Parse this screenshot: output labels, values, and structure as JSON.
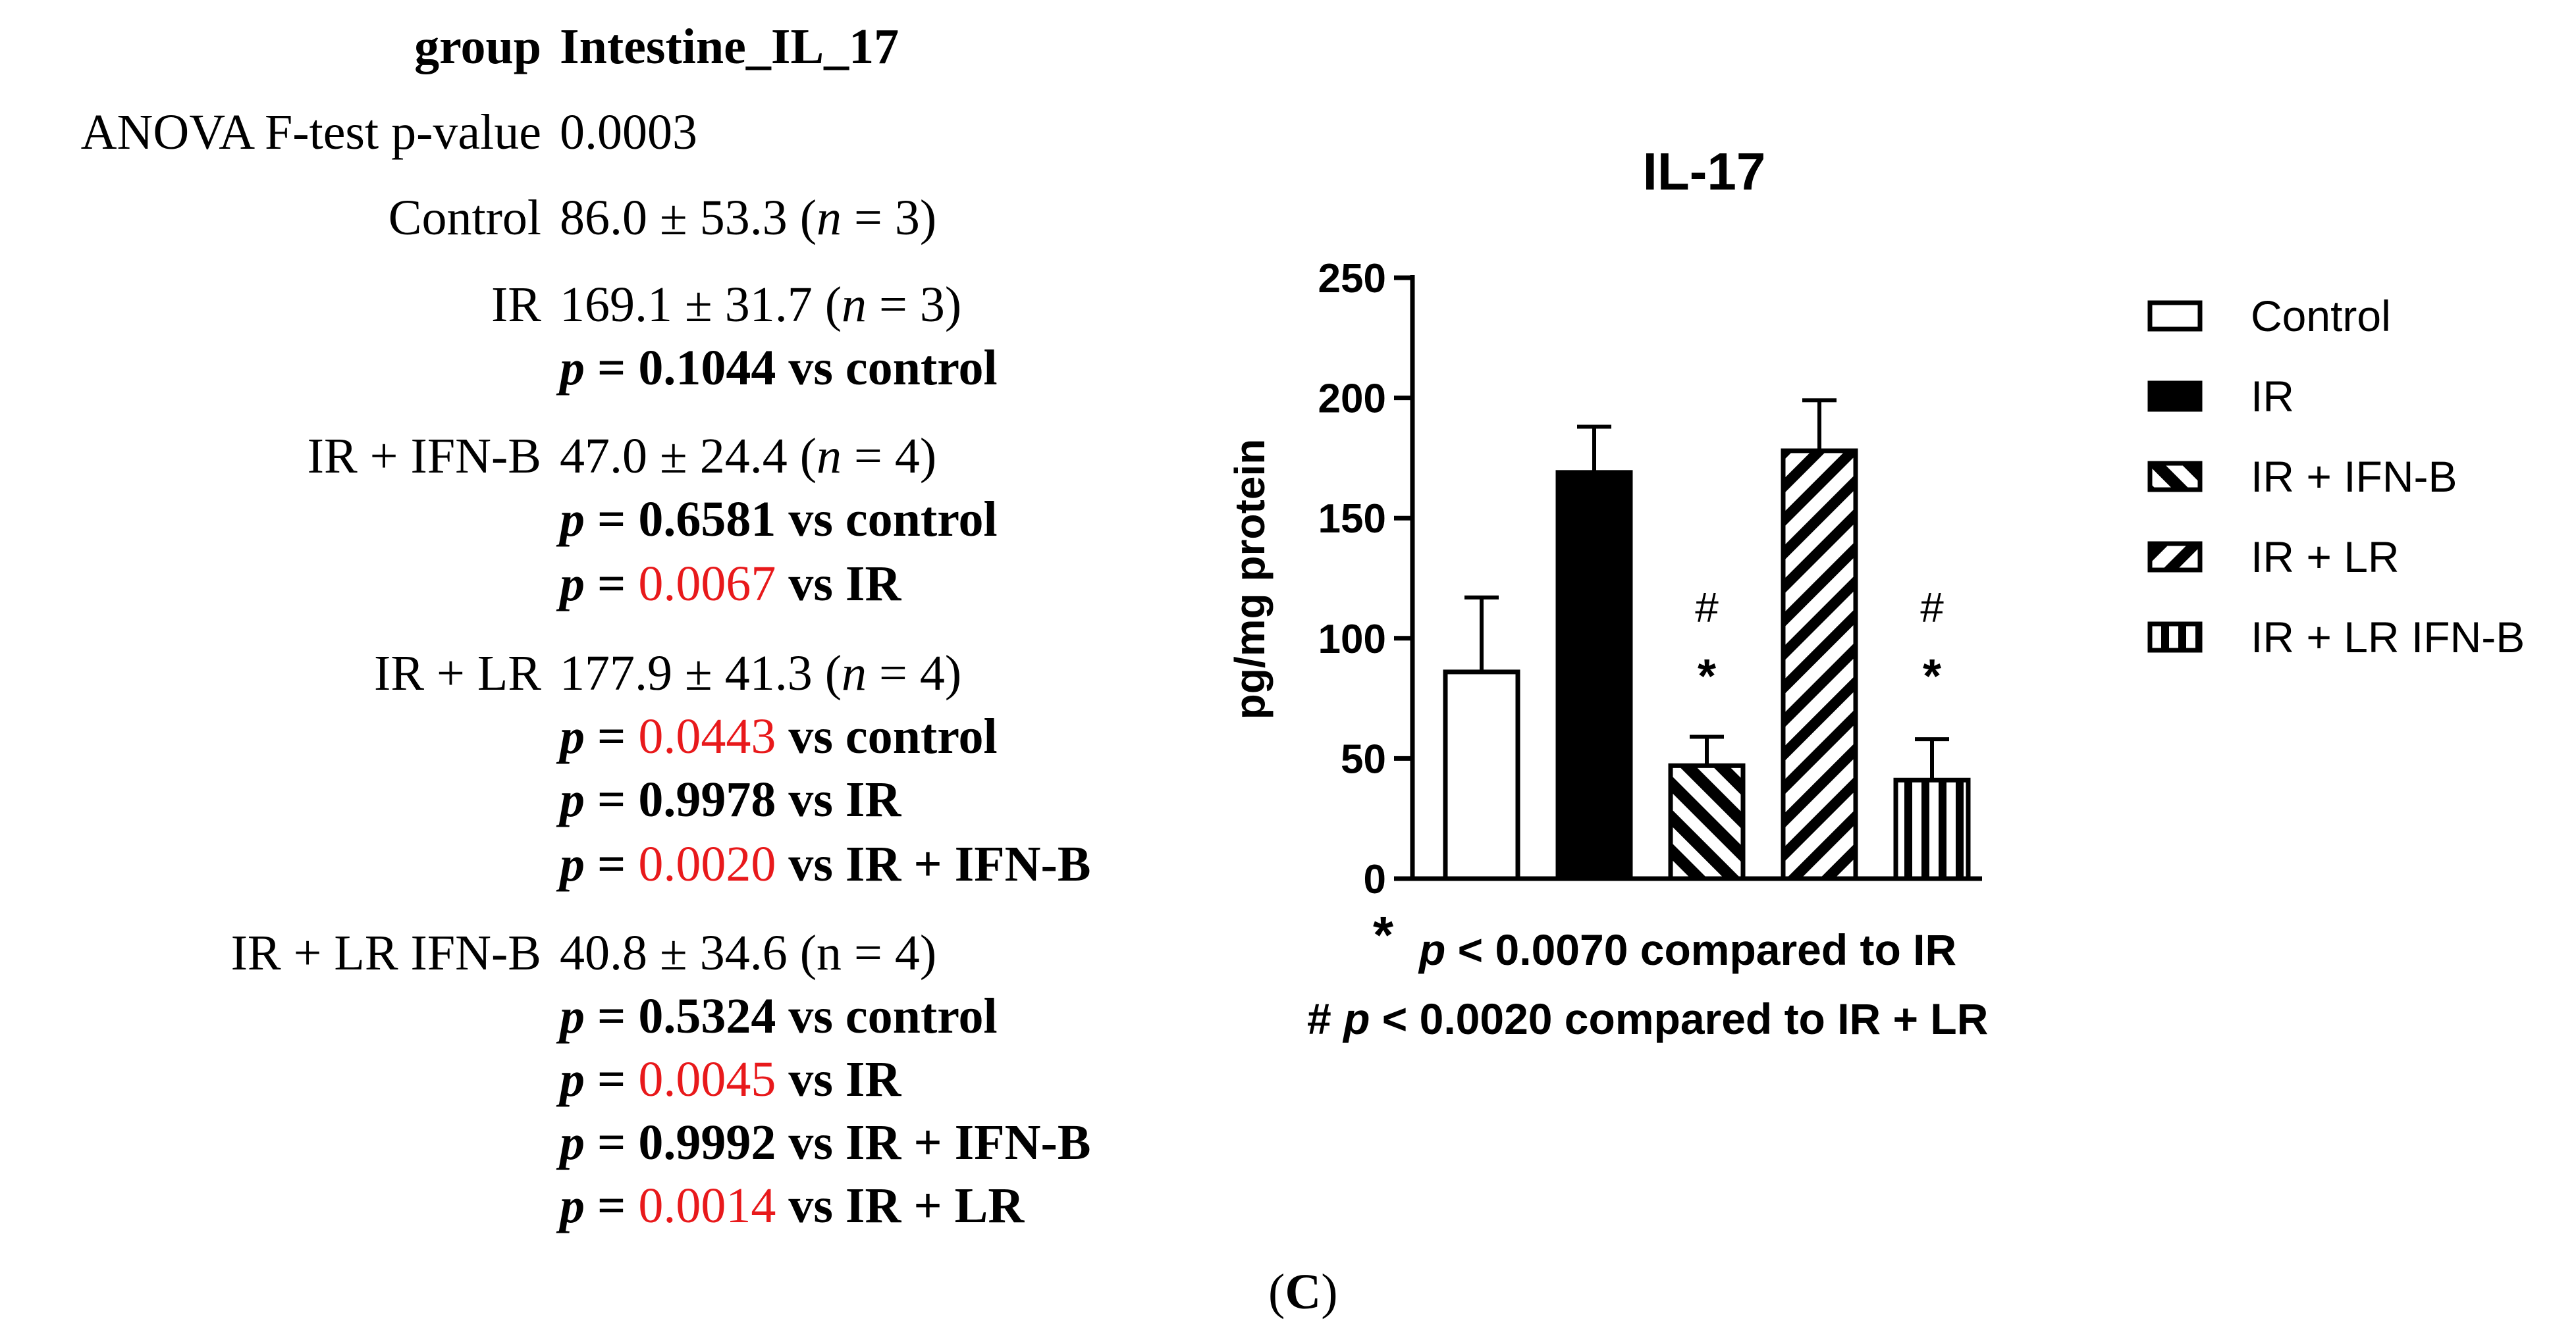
{
  "stats": {
    "header": {
      "label": "group",
      "value": "Intestine_IL_17"
    },
    "anova": {
      "label": "ANOVA F-test p-value",
      "value": "0.0003"
    },
    "groups": [
      {
        "label": "Control",
        "mean": "86.0 ± 53.3",
        "n": "3",
        "comparisons": []
      },
      {
        "label": "IR",
        "mean": "169.1 ± 31.7",
        "n": "3",
        "comparisons": [
          {
            "p": "0.1044",
            "vs": "vs control",
            "significant": false
          }
        ]
      },
      {
        "label": "IR + IFN-B",
        "mean": "47.0 ± 24.4",
        "n": "4",
        "comparisons": [
          {
            "p": "0.6581",
            "vs": "vs control",
            "significant": false
          },
          {
            "p": "0.0067",
            "vs": "vs IR",
            "significant": true
          }
        ]
      },
      {
        "label": "IR + LR",
        "mean": "177.9 ± 41.3",
        "n": "4",
        "comparisons": [
          {
            "p": "0.0443",
            "vs": "vs control",
            "significant": true
          },
          {
            "p": "0.9978",
            "vs": "vs IR",
            "significant": false
          },
          {
            "p": "0.0020",
            "vs": "vs IR + IFN-B",
            "significant": true
          }
        ]
      },
      {
        "label": "IR + LR IFN-B",
        "mean": "40.8 ± 34.6",
        "n": "4",
        "n_plain": true,
        "comparisons": [
          {
            "p": "0.5324",
            "vs": "vs control",
            "significant": false
          },
          {
            "p": "0.0045",
            "vs": "vs IR",
            "significant": true
          },
          {
            "p": "0.9992",
            "vs": "vs IR + IFN-B",
            "significant": false
          },
          {
            "p": "0.0014",
            "vs": "vs IR + LR",
            "significant": true
          }
        ]
      }
    ]
  },
  "chart_data": {
    "type": "bar",
    "title": "IL-17",
    "xlabel": "",
    "ylabel": "pg/mg protein",
    "ylim": [
      0,
      250
    ],
    "yticks": [
      0,
      50,
      100,
      150,
      200,
      250
    ],
    "categories": [
      "Control",
      "IR",
      "IR + IFN-B",
      "IR + LR",
      "IR + LR IFN-B"
    ],
    "values": [
      86,
      169,
      47,
      178,
      41
    ],
    "error_upper": [
      117,
      188,
      59,
      199,
      58
    ],
    "fills": [
      "white",
      "black",
      "hatch-back",
      "hatch-forward",
      "hatch-vertical"
    ],
    "markers": [
      {
        "category": "IR + IFN-B",
        "symbols": [
          "#",
          "*"
        ]
      },
      {
        "category": "IR + LR IFN-B",
        "symbols": [
          "#",
          "*"
        ]
      }
    ],
    "legend": [
      "Control",
      "IR",
      "IR + IFN-B",
      "IR + LR",
      "IR + LR IFN-B"
    ],
    "legend_position": "right",
    "grid": false
  },
  "footnotes": {
    "line1_star": "*",
    "line1_p": "p",
    "line1_text": " < 0.0070 compared to IR",
    "line2_hash": "#",
    "line2_p": "p",
    "line2_text": " < 0.0020 compared to IR + LR"
  },
  "panel_label": {
    "open": "(",
    "letter": "C",
    "close": ")"
  },
  "colors": {
    "significant": "#e8191b",
    "text": "#000000"
  }
}
